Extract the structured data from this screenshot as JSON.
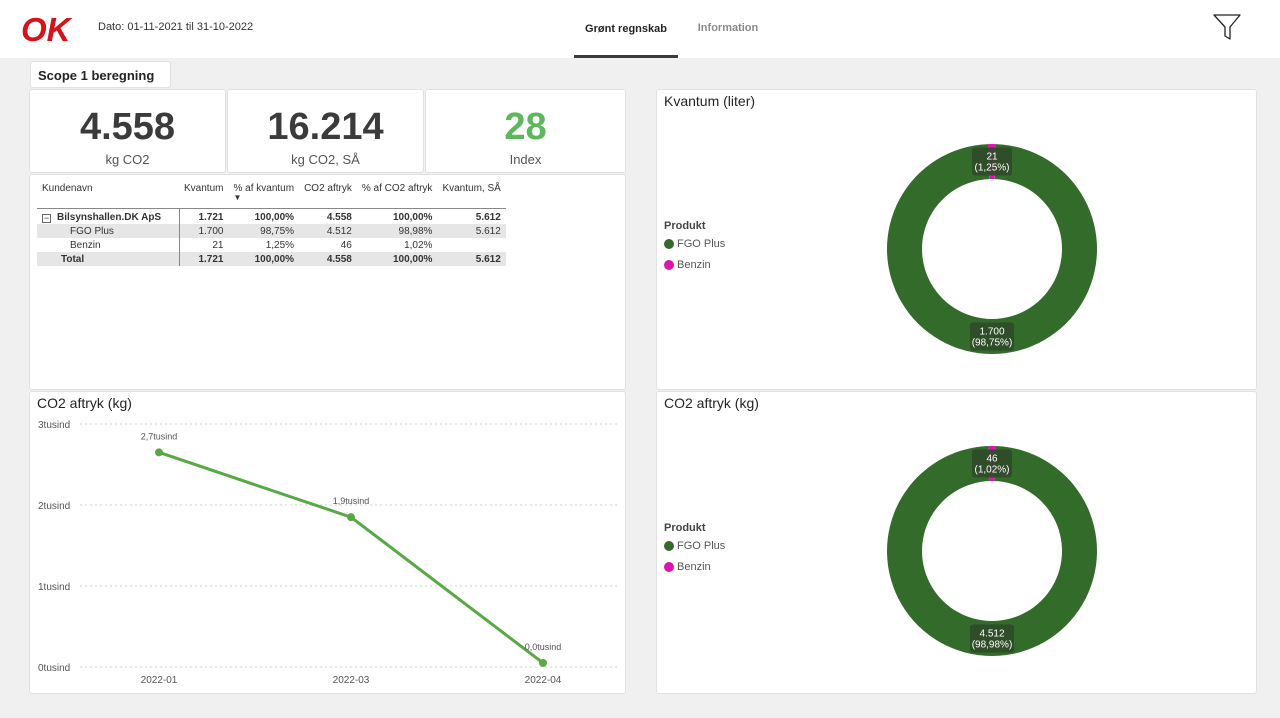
{
  "header": {
    "logo_text": "OK",
    "date_range": "Dato: 01-11-2021 til 31-10-2022",
    "tabs": [
      {
        "label": "Grønt regnskab",
        "active": true
      },
      {
        "label": "Information",
        "active": false
      }
    ],
    "filter_icon": "filter-funnel-icon"
  },
  "colors": {
    "brand_red": "#d6131b",
    "fgo_green": "#336b2a",
    "benzin_magenta": "#d916b4",
    "line_green": "#58a945",
    "kpi_green": "#5cb85c"
  },
  "scope_title": "Scope 1 beregning",
  "kpis": [
    {
      "value": "4.558",
      "label": "kg CO2"
    },
    {
      "value": "16.214",
      "label": "kg CO2, SÅ"
    },
    {
      "value": "28",
      "label": "Index"
    }
  ],
  "matrix": {
    "columns": [
      "Kundenavn",
      "Kvantum",
      "% af kvantum",
      "CO2 aftryk",
      "% af CO2 aftryk",
      "Kvantum, SÅ"
    ],
    "sort_indicator": "▼",
    "group": {
      "name": "Bilsynshallen.DK ApS",
      "expand_symbol": "−",
      "values": [
        "1.721",
        "100,00%",
        "4.558",
        "100,00%",
        "5.612"
      ]
    },
    "rows": [
      {
        "name": "FGO Plus",
        "values": [
          "1.700",
          "98,75%",
          "4.512",
          "98,98%",
          "5.612"
        ]
      },
      {
        "name": "Benzin",
        "values": [
          "21",
          "1,25%",
          "46",
          "1,02%",
          ""
        ]
      }
    ],
    "total": {
      "name": "Total",
      "values": [
        "1.721",
        "100,00%",
        "4.558",
        "100,00%",
        "5.612"
      ]
    }
  },
  "donut_kvantum": {
    "title": "Kvantum (liter)",
    "legend_title": "Produkt",
    "legend": [
      {
        "name": "FGO Plus",
        "color": "#336b2a"
      },
      {
        "name": "Benzin",
        "color": "#d916b4"
      }
    ],
    "labels": {
      "benzin_value": "21",
      "benzin_pct": "(1,25%)",
      "fgo_value": "1.700",
      "fgo_pct": "(98,75%)"
    }
  },
  "donut_co2": {
    "title": "CO2 aftryk (kg)",
    "legend_title": "Produkt",
    "legend": [
      {
        "name": "FGO Plus",
        "color": "#336b2a"
      },
      {
        "name": "Benzin",
        "color": "#d916b4"
      }
    ],
    "labels": {
      "benzin_value": "46",
      "benzin_pct": "(1,02%)",
      "fgo_value": "4.512",
      "fgo_pct": "(98,98%)"
    }
  },
  "chart_data": [
    {
      "type": "line",
      "title": "CO2 aftryk (kg)",
      "x": [
        "2022-01",
        "2022-03",
        "2022-04"
      ],
      "y_ticks": [
        "0tusind",
        "1tusind",
        "2tusind",
        "3tusind"
      ],
      "ylim": [
        0,
        3000
      ],
      "series": [
        {
          "values": [
            2650,
            1850,
            50
          ],
          "data_labels": [
            "2,7tusind",
            "1,9tusind",
            "0,0tusind"
          ]
        }
      ],
      "grid": true
    },
    {
      "type": "pie",
      "title": "Kvantum (liter)",
      "legend_title": "Produkt",
      "categories": [
        "FGO Plus",
        "Benzin"
      ],
      "values": [
        1700,
        21
      ]
    },
    {
      "type": "pie",
      "title": "CO2 aftryk (kg)",
      "legend_title": "Produkt",
      "categories": [
        "FGO Plus",
        "Benzin"
      ],
      "values": [
        4512,
        46
      ]
    }
  ]
}
